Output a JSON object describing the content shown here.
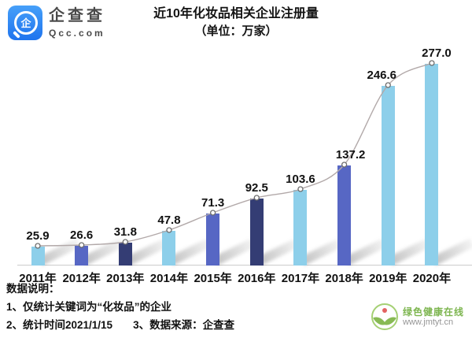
{
  "header": {
    "brand_name": "企查查",
    "brand_domain": "Qcc.com",
    "logo_char": "企",
    "brand_color": "#2e82f7"
  },
  "title": {
    "line1": "近10年化妆品相关企业注册量",
    "line2": "（单位：万家）"
  },
  "chart_data": {
    "type": "bar",
    "overlay": "line",
    "title": "近10年化妆品相关企业注册量",
    "subtitle": "（单位：万家）",
    "unit": "万家",
    "categories": [
      "2011年",
      "2012年",
      "2013年",
      "2014年",
      "2015年",
      "2016年",
      "2017年",
      "2018年",
      "2019年",
      "2020年"
    ],
    "values": [
      25.9,
      26.6,
      31.8,
      47.8,
      71.3,
      92.5,
      103.6,
      137.2,
      246.6,
      277.0
    ],
    "bar_colors": [
      "#8DCFEA",
      "#5767C4",
      "#343D74",
      "#8DCFEA",
      "#5767C4",
      "#343D74",
      "#8DCFEA",
      "#5767C4",
      "#8DCFEA",
      "#8DCFEA"
    ],
    "palette": {
      "light_blue": "#8DCFEA",
      "medium_blue": "#5767C4",
      "dark_navy": "#343D74"
    },
    "line_color": "#b2a9a9",
    "marker": {
      "fill": "#ffffff",
      "stroke": "#6e6e6e"
    },
    "axis_color": "#cccccc",
    "ylim": [
      0,
      300
    ],
    "grid": false,
    "legend": false
  },
  "notes": {
    "heading": "数据说明：",
    "note1": "1、仅统计关键词为“化妆品”的企业",
    "note2a": "2、统计时间2021/1/15",
    "note2b": "3、数据来源：企查查"
  },
  "watermark": {
    "name": "绿色健康在线",
    "url": "www.jmtyt.cn"
  }
}
